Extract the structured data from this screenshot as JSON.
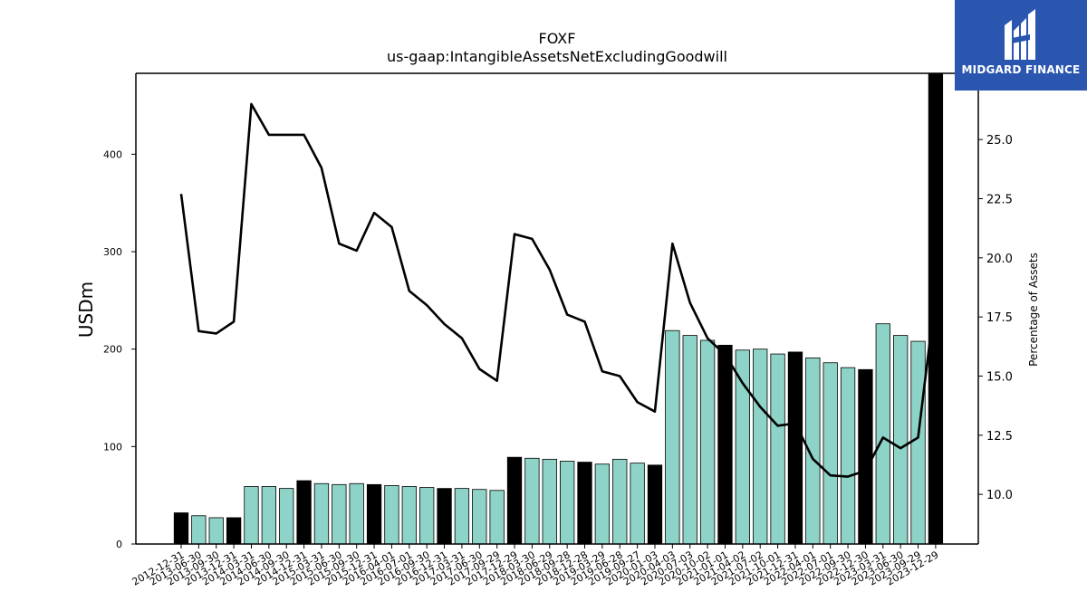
{
  "chart_data": {
    "type": "bar",
    "title": "FOXF",
    "subtitle": "us-gaap:IntangibleAssetsNetExcludingGoodwill",
    "ylabel": "USDm",
    "y2label": "Percentage of Assets",
    "ylim": [
      0,
      483
    ],
    "y2lim": [
      7.9,
      27.8
    ],
    "yticks": [
      0,
      100,
      200,
      300,
      400
    ],
    "y2ticks": [
      10.0,
      12.5,
      15.0,
      17.5,
      20.0,
      22.5,
      25.0
    ],
    "categories": [
      "2012-12-31",
      "2013-06-30",
      "2013-09-30",
      "2013-12-31",
      "2014-03-31",
      "2014-06-30",
      "2014-09-30",
      "2014-12-31",
      "2015-03-31",
      "2015-06-30",
      "2015-09-30",
      "2015-12-31",
      "2016-04-01",
      "2016-07-01",
      "2016-09-30",
      "2016-12-31",
      "2017-03-31",
      "2017-06-30",
      "2017-09-29",
      "2017-12-29",
      "2018-03-30",
      "2018-06-29",
      "2018-09-28",
      "2018-12-28",
      "2019-03-29",
      "2019-06-28",
      "2019-09-27",
      "2020-01-03",
      "2020-04-03",
      "2020-07-03",
      "2020-10-02",
      "2021-01-01",
      "2021-04-02",
      "2021-07-02",
      "2021-10-01",
      "2021-12-31",
      "2022-04-01",
      "2022-07-01",
      "2022-09-30",
      "2022-12-30",
      "2023-03-31",
      "2023-06-30",
      "2023-09-29",
      "2023-12-29"
    ],
    "series": [
      {
        "kind": "bar",
        "values": [
          32,
          29,
          27,
          27,
          59,
          59,
          57,
          65,
          62,
          61,
          62,
          61,
          60,
          59,
          58,
          57,
          57,
          56,
          55,
          89,
          88,
          87,
          85,
          84,
          82,
          87,
          83,
          81,
          219,
          214,
          209,
          204,
          199,
          200,
          195,
          197,
          191,
          186,
          181,
          179,
          226,
          214,
          208,
          483
        ],
        "year_end": [
          true,
          false,
          false,
          true,
          false,
          false,
          false,
          true,
          false,
          false,
          false,
          true,
          false,
          false,
          false,
          true,
          false,
          false,
          false,
          true,
          false,
          false,
          false,
          true,
          false,
          false,
          false,
          true,
          false,
          false,
          false,
          true,
          false,
          false,
          false,
          true,
          false,
          false,
          false,
          true,
          false,
          false,
          false,
          true
        ]
      },
      {
        "kind": "line",
        "axis": "right",
        "values": [
          22.7,
          16.9,
          16.8,
          17.3,
          26.5,
          25.2,
          25.2,
          25.2,
          23.8,
          20.6,
          20.3,
          21.9,
          21.3,
          18.6,
          18.0,
          17.2,
          16.6,
          15.3,
          14.8,
          21.0,
          20.8,
          19.5,
          17.6,
          17.3,
          15.2,
          15.0,
          13.9,
          13.5,
          20.6,
          18.1,
          16.6,
          15.9,
          14.7,
          13.7,
          12.9,
          13.0,
          11.5,
          10.8,
          10.75,
          11.0,
          12.4,
          11.95,
          12.4,
          18.5
        ]
      }
    ],
    "colors": {
      "bar": "#8dd3c7",
      "bar_year_end": "#000000",
      "line": "#000000"
    },
    "grid": false,
    "legend": "none"
  },
  "logo": {
    "text": "MIDGARD FINANCE",
    "background": "#2a56b0"
  }
}
